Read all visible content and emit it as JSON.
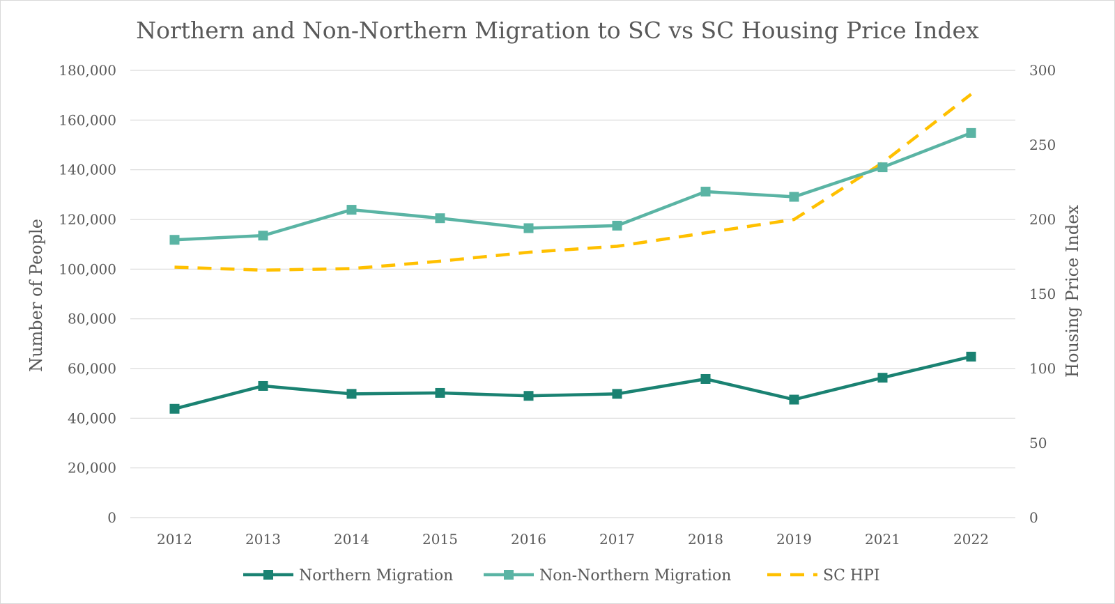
{
  "chart_data": {
    "type": "line",
    "title": "Northern and Non-Northern Migration to SC vs SC Housing Price Index",
    "categories": [
      "2012",
      "2013",
      "2014",
      "2015",
      "2016",
      "2017",
      "2018",
      "2019",
      "2021",
      "2022"
    ],
    "y_left": {
      "label": "Number of People",
      "min": 0,
      "max": 180000,
      "step": 20000,
      "ticks": [
        "0",
        "20,000",
        "40,000",
        "60,000",
        "80,000",
        "100,000",
        "120,000",
        "140,000",
        "160,000",
        "180,000"
      ]
    },
    "y_right": {
      "label": "Housing Price Index",
      "min": 0,
      "max": 300,
      "step": 50,
      "ticks": [
        "0",
        "50",
        "100",
        "150",
        "200",
        "250",
        "300"
      ]
    },
    "series": [
      {
        "name": "Northern Migration",
        "axis": "left",
        "color": "#1a8272",
        "style": "solid-square-markers",
        "values": [
          43800,
          53000,
          49800,
          50200,
          49000,
          49800,
          55800,
          47500,
          56300,
          64800
        ]
      },
      {
        "name": "Non-Northern Migration",
        "axis": "left",
        "color": "#5ab4a4",
        "style": "solid-square-markers",
        "values": [
          111800,
          113500,
          123900,
          120500,
          116500,
          117500,
          131200,
          129100,
          141000,
          154800
        ]
      },
      {
        "name": "SC HPI",
        "axis": "right",
        "color": "#ffc000",
        "style": "dashed",
        "values": [
          168,
          166,
          167,
          172,
          178,
          182,
          191,
          200,
          238,
          284
        ]
      }
    ],
    "grid": true,
    "legend_position": "bottom"
  }
}
